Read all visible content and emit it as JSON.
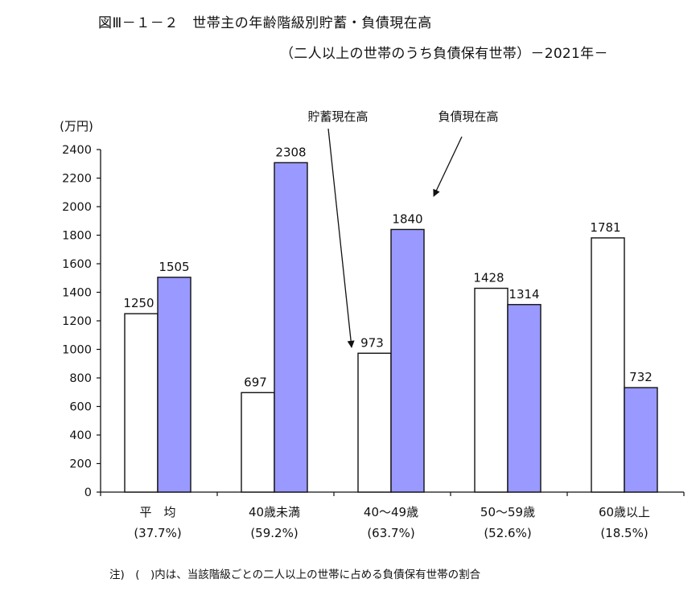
{
  "title": {
    "line1": "図Ⅲ－１－２　世帯主の年齢階級別貯蓄・負債現在高",
    "line2": "（二人以上の世帯のうち負債保有世帯）－2021年－"
  },
  "note": "注)　(　)内は、当該階級ごとの二人以上の世帯に占める負債保有世帯の割合",
  "chart_data": {
    "type": "bar",
    "unit_label": "(万円)",
    "ylim": [
      0,
      2400
    ],
    "yticks": [
      0,
      200,
      400,
      600,
      800,
      1000,
      1200,
      1400,
      1600,
      1800,
      2000,
      2200,
      2400
    ],
    "grid": false,
    "categories": [
      "平　均",
      "40歳未満",
      "40～49歳",
      "50～59歳",
      "60歳以上"
    ],
    "category_shares": [
      "(37.7%)",
      "(59.2%)",
      "(63.7%)",
      "(52.6%)",
      "(18.5%)"
    ],
    "series": [
      {
        "name": "貯蓄現在高",
        "values": [
          1250,
          697,
          973,
          1428,
          1781
        ],
        "color": "#ffffff"
      },
      {
        "name": "負債現在高",
        "values": [
          1505,
          2308,
          1840,
          1314,
          732
        ],
        "color": "#9999ff"
      }
    ],
    "annotations": [
      {
        "text": "貯蓄現在高",
        "target_series": 0,
        "target_category": 2
      },
      {
        "text": "負債現在高",
        "target_series": 1,
        "target_category": 2
      }
    ]
  }
}
